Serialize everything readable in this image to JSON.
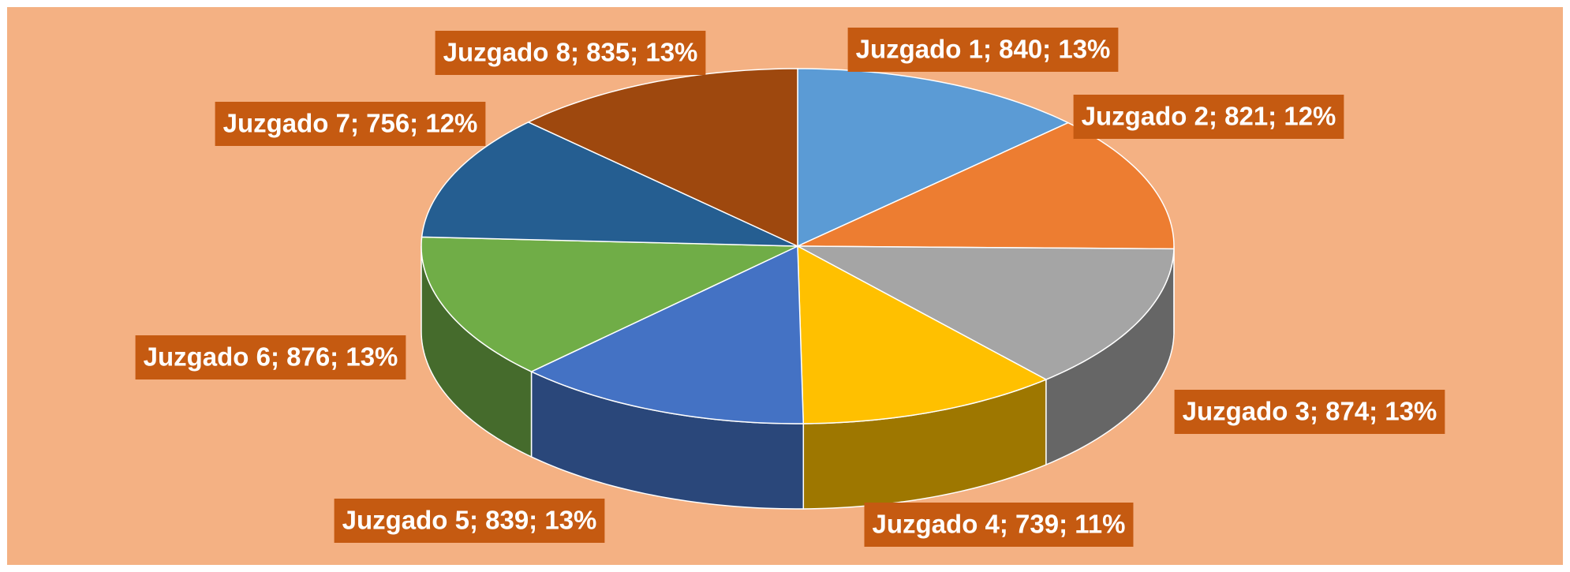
{
  "chart_data": {
    "type": "pie",
    "values": [
      840,
      821,
      874,
      739,
      839,
      876,
      756,
      835
    ],
    "value_labels": [
      "Juzgado 1; 840; 13%",
      "Juzgado 2; 821; 12%",
      "Juzgado 3; 874; 13%",
      "Juzgado 4; 739; 11%",
      "Juzgado 5; 839; 13%",
      "Juzgado 6; 876; 13%",
      "Juzgado 7; 756; 12%",
      "Juzgado 8; 835; 13%"
    ],
    "colors": [
      "#5b9bd5",
      "#ed7d31",
      "#a5a5a5",
      "#ffc000",
      "#4472c4",
      "#70ad47",
      "#255e91",
      "#9e480e"
    ]
  }
}
